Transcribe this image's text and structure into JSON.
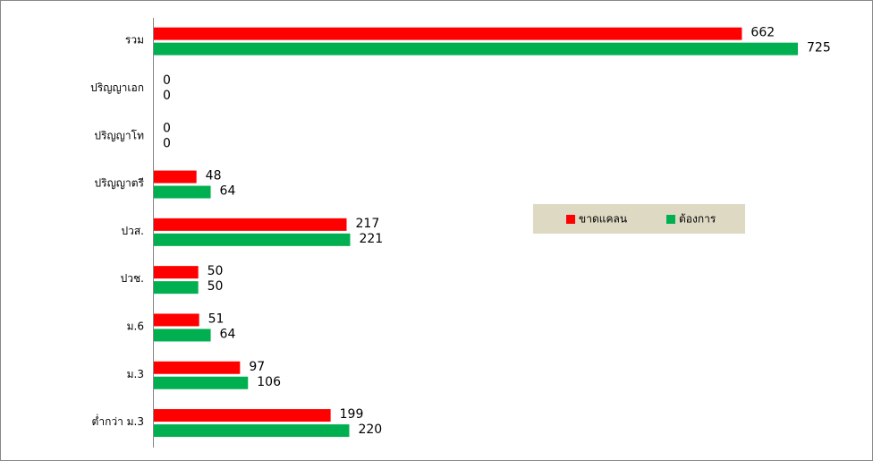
{
  "chart_data": {
    "type": "bar",
    "orientation": "horizontal",
    "categories": [
      "รวม",
      "ปริญญาเอก",
      "ปริญญาโท",
      "ปริญญาตรี",
      "ปวส.",
      "ปวช.",
      "ม.6",
      "ม.3",
      "ต่ำกว่า ม.3"
    ],
    "series": [
      {
        "name": "ขาดแคลน",
        "color": "#ff0000",
        "values": [
          662,
          0,
          0,
          48,
          217,
          50,
          51,
          97,
          199
        ]
      },
      {
        "name": "ต้องการ",
        "color": "#00b050",
        "values": [
          725,
          0,
          0,
          64,
          221,
          50,
          64,
          106,
          220
        ]
      }
    ],
    "legend": "right"
  }
}
